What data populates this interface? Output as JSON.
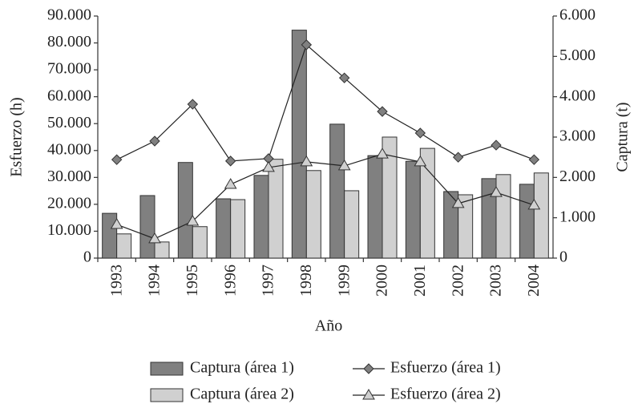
{
  "chart_data": {
    "type": "combo",
    "xlabel": "Año",
    "ylabel": "Esfuerzo (h)",
    "y2label": "Captura (t)",
    "categories": [
      "1993",
      "1994",
      "1995",
      "1996",
      "1997",
      "1998",
      "1999",
      "2000",
      "2001",
      "2002",
      "2003",
      "2004"
    ],
    "series": [
      {
        "name": "Captura (área 1)",
        "type": "bar",
        "axis": "y2",
        "color": "#808080",
        "values": [
          1110,
          1550,
          2370,
          1470,
          2050,
          5650,
          3320,
          2540,
          2400,
          1650,
          1970,
          1830
        ]
      },
      {
        "name": "Captura (área 2)",
        "type": "bar",
        "axis": "y2",
        "color": "#d0d0d0",
        "values": [
          600,
          400,
          780,
          1450,
          2450,
          2170,
          1670,
          3000,
          2720,
          1570,
          2070,
          2110
        ]
      },
      {
        "name": "Esfuerzo (área 1)",
        "type": "line",
        "marker": "diamond",
        "color": "#808080",
        "values": [
          36600,
          43500,
          57200,
          36100,
          37000,
          79300,
          67000,
          54500,
          46500,
          37500,
          42000,
          36600
        ]
      },
      {
        "name": "Esfuerzo (área 2)",
        "type": "line",
        "marker": "triangle",
        "color": "#d0d0d0",
        "values": [
          12500,
          7200,
          13700,
          27400,
          33700,
          35800,
          34300,
          38700,
          35800,
          20300,
          24400,
          19700
        ]
      }
    ],
    "ylim": [
      0,
      90000
    ],
    "yticks": [
      0,
      {
        "value": 10000,
        "label": "10.000"
      },
      {
        "value": 20000,
        "label": "20.000"
      },
      {
        "value": 30000,
        "label": "30.000"
      },
      {
        "value": 40000,
        "label": "40.000"
      },
      {
        "value": 50000,
        "label": "50.000"
      },
      {
        "value": 60000,
        "label": "60.000"
      },
      {
        "value": 70000,
        "label": "70.000"
      },
      {
        "value": 80000,
        "label": "80.000"
      },
      {
        "value": 90000,
        "label": "90.000"
      }
    ],
    "y2lim": [
      0,
      6000
    ],
    "y2ticks": [
      0,
      {
        "value": 1000,
        "label": "1.000"
      },
      {
        "value": 2000,
        "label": "2.000"
      },
      {
        "value": 3000,
        "label": "3.000"
      },
      {
        "value": 4000,
        "label": "4.000"
      },
      {
        "value": 5000,
        "label": "5.000"
      },
      {
        "value": 6000,
        "label": "6.000"
      }
    ],
    "grid": false
  }
}
